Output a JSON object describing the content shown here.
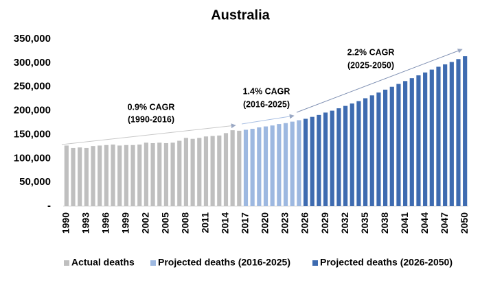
{
  "chart_data": {
    "type": "bar",
    "title": "Australia",
    "categories": [
      "1990",
      null,
      null,
      "1993",
      null,
      null,
      "1996",
      null,
      null,
      "1999",
      null,
      null,
      "2002",
      null,
      null,
      "2005",
      null,
      null,
      "2008",
      null,
      null,
      "2011",
      null,
      null,
      "2014",
      null,
      null,
      "2017",
      null,
      null,
      "2020",
      null,
      null,
      "2023",
      null,
      null,
      "2026",
      null,
      null,
      "2029",
      null,
      null,
      "2032",
      null,
      null,
      "2035",
      null,
      null,
      "2038",
      null,
      null,
      "2041",
      null,
      null,
      "2044",
      null,
      null,
      "2047",
      null,
      null,
      "2050"
    ],
    "series": [
      {
        "name": "Actual deaths",
        "color": "#bfbfbf",
        "values": [
          127000,
          122000,
          123000,
          122000,
          126000,
          127000,
          128000,
          129000,
          127000,
          128000,
          128000,
          129000,
          133000,
          132000,
          133000,
          132000,
          133000,
          137000,
          143000,
          141000,
          143000,
          146000,
          147000,
          148000,
          153000,
          159000,
          158000,
          null,
          null,
          null,
          null,
          null,
          null,
          null,
          null,
          null,
          null,
          null,
          null,
          null,
          null,
          null,
          null,
          null,
          null,
          null,
          null,
          null,
          null,
          null,
          null,
          null,
          null,
          null,
          null,
          null,
          null,
          null,
          null,
          null,
          null
        ]
      },
      {
        "name": "Projected deaths (2016-2025)",
        "color": "#9db8e0",
        "values": [
          null,
          null,
          null,
          null,
          null,
          null,
          null,
          null,
          null,
          null,
          null,
          null,
          null,
          null,
          null,
          null,
          null,
          null,
          null,
          null,
          null,
          null,
          null,
          null,
          null,
          null,
          null,
          160000,
          162000,
          165000,
          167000,
          169000,
          172000,
          174000,
          177000,
          180000,
          null,
          null,
          null,
          null,
          null,
          null,
          null,
          null,
          null,
          null,
          null,
          null,
          null,
          null,
          null,
          null,
          null,
          null,
          null,
          null,
          null,
          null,
          null,
          null,
          null
        ]
      },
      {
        "name": "Projected deaths (2026-2050)",
        "color": "#3e6bb0",
        "values": [
          null,
          null,
          null,
          null,
          null,
          null,
          null,
          null,
          null,
          null,
          null,
          null,
          null,
          null,
          null,
          null,
          null,
          null,
          null,
          null,
          null,
          null,
          null,
          null,
          null,
          null,
          null,
          null,
          null,
          null,
          null,
          null,
          null,
          null,
          null,
          null,
          183000,
          187000,
          191000,
          196000,
          200000,
          205000,
          210000,
          215000,
          220000,
          226000,
          232000,
          238000,
          244000,
          250000,
          256000,
          262000,
          268000,
          274000,
          280000,
          286000,
          292000,
          297000,
          302000,
          308000,
          314000
        ]
      }
    ],
    "ylim": [
      0,
      350000
    ],
    "yticks": [
      {
        "value": 0,
        "label": "-"
      },
      {
        "value": 50000,
        "label": "50,000"
      },
      {
        "value": 100000,
        "label": "100,000"
      },
      {
        "value": 150000,
        "label": "150,000"
      },
      {
        "value": 200000,
        "label": "200,000"
      },
      {
        "value": 250000,
        "label": "250,000"
      },
      {
        "value": 300000,
        "label": "300,000"
      },
      {
        "value": 350000,
        "label": "350,000"
      }
    ],
    "annotations": [
      "0.9% CAGR",
      "(1990-2016)",
      "1.4% CAGR",
      "(2016-2025)",
      "2.2% CAGR",
      "(2025-2050)"
    ],
    "legend": "bottom"
  }
}
